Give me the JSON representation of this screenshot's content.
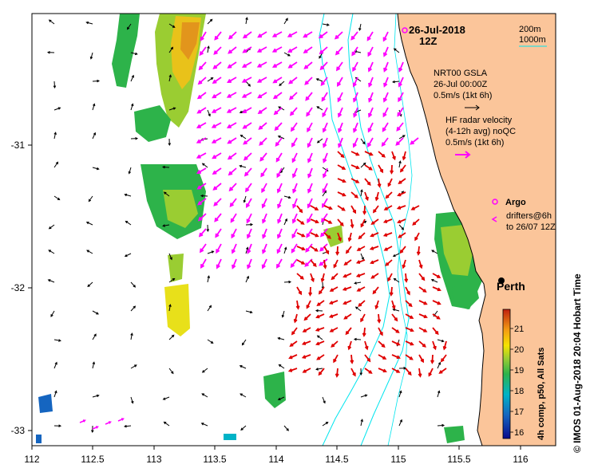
{
  "map": {
    "date": "26-Jul-2018",
    "time": "12Z",
    "x_ticks": [
      "112",
      "112.5",
      "113",
      "113.5",
      "114",
      "114.5",
      "115",
      "115.5",
      "116"
    ],
    "y_ticks": [
      "-31",
      "-32",
      "-33"
    ],
    "city": "Perth",
    "credit": "© IMOS 01-Aug-2018 20:04 Hobart Time"
  },
  "legend": {
    "isobath_1": "200m",
    "isobath_2": "1000m",
    "gsla_title": "NRT00 GSLA",
    "gsla_time": "26-Jul 00:00Z",
    "gsla_scale": "0.5m/s (1kt 6h)",
    "hf_title": "HF radar velocity",
    "hf_avg": "(4-12h avg) noQC",
    "hf_scale": "0.5m/s (1kt 6h)",
    "argo": "Argo",
    "drifters_1": "drifters@6h",
    "drifters_2": "to 26/07 12Z"
  },
  "colorbar": {
    "label": "4h comp, p50, All Sats",
    "ticks": [
      "21",
      "20",
      "19",
      "18",
      "17",
      "16"
    ]
  },
  "colors": {
    "land": "#fbc59a",
    "isobath": "#00e5ee",
    "gsla_arrow": "#000000",
    "hf_arrow": "#ff00ff",
    "drifter": "#e00000"
  }
}
